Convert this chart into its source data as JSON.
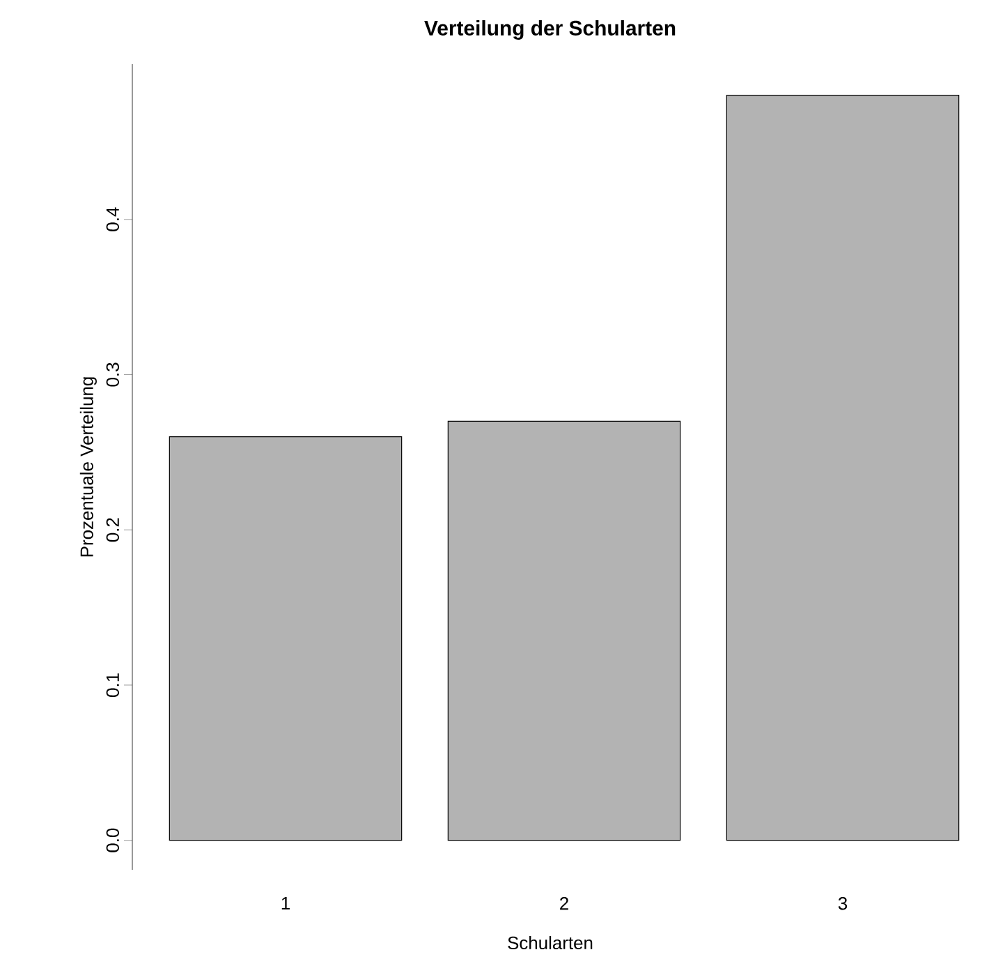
{
  "chart_data": {
    "type": "bar",
    "title": "Verteilung der Schularten",
    "xlabel": "Schularten",
    "ylabel": "Prozentuale Verteilung",
    "categories": [
      "1",
      "2",
      "3"
    ],
    "values": [
      0.26,
      0.27,
      0.48
    ],
    "color": "#b3b3b3",
    "ylim": [
      -0.019,
      0.5
    ],
    "yticks": [
      {
        "value": 0,
        "label": "0.0"
      },
      0.1,
      0.2,
      0.3,
      0.4
    ],
    "grid": false
  }
}
